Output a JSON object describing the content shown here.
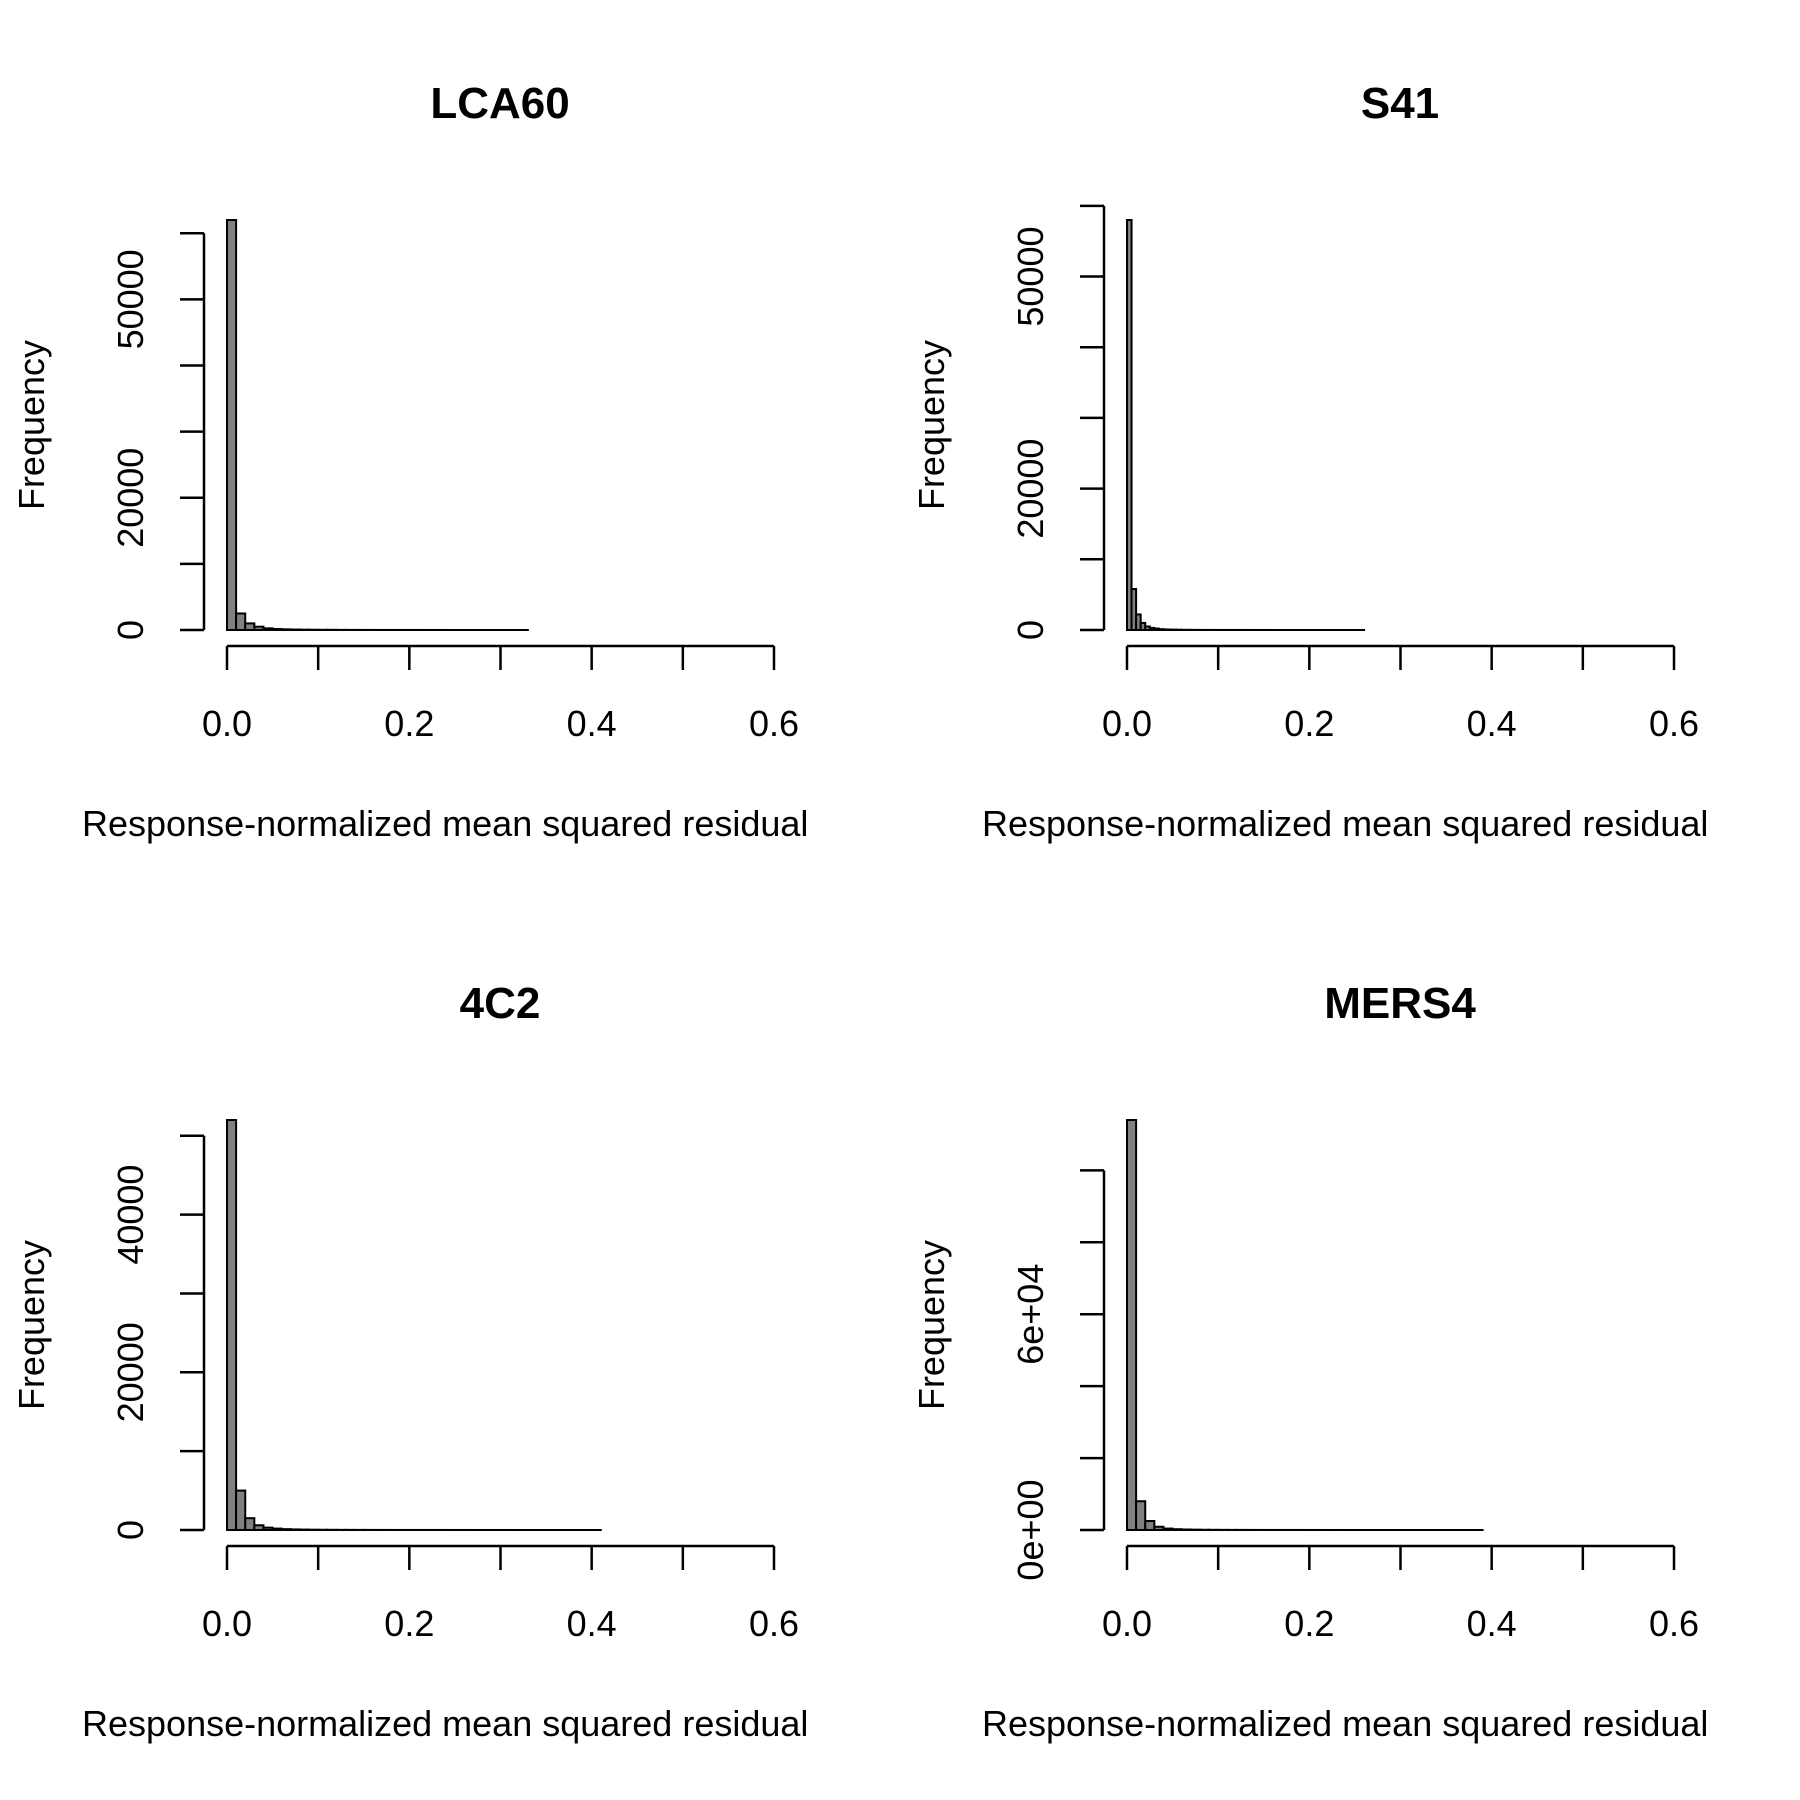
{
  "chart_data": [
    {
      "type": "bar",
      "title": "LCA60",
      "xlabel": "Response-normalized mean squared residual",
      "ylabel": "Frequency",
      "x_ticks": [
        "0.0",
        "0.2",
        "0.4",
        "0.6"
      ],
      "x_tick_values": [
        0.0,
        0.1,
        0.2,
        0.3,
        0.4,
        0.5,
        0.6
      ],
      "y_ticks": [
        "0",
        "20000",
        "50000"
      ],
      "y_tick_values": [
        0,
        10000,
        20000,
        30000,
        40000,
        50000,
        60000
      ],
      "xlim": [
        0.0,
        0.6
      ],
      "ylim": [
        0,
        62000
      ],
      "bin_width": 0.01,
      "x_start": 0.0,
      "values": [
        62000,
        2500,
        1000,
        500,
        250,
        150,
        100,
        70,
        50,
        40,
        30,
        25,
        20,
        15,
        12,
        10,
        8,
        7,
        6,
        5,
        4,
        4,
        3,
        3,
        2,
        2,
        2,
        1,
        1,
        1,
        1,
        1,
        1
      ],
      "bar_color": "#808080"
    },
    {
      "type": "bar",
      "title": "S41",
      "xlabel": "Response-normalized mean squared residual",
      "ylabel": "Frequency",
      "x_ticks": [
        "0.0",
        "0.2",
        "0.4",
        "0.6"
      ],
      "x_tick_values": [
        0.0,
        0.1,
        0.2,
        0.3,
        0.4,
        0.5,
        0.6
      ],
      "y_ticks": [
        "0",
        "20000",
        "50000"
      ],
      "y_tick_values": [
        0,
        10000,
        20000,
        30000,
        40000,
        50000,
        60000
      ],
      "xlim": [
        0.0,
        0.6
      ],
      "ylim": [
        0,
        58000
      ],
      "bin_width": 0.005,
      "x_start": 0.0,
      "values": [
        58000,
        5800,
        2200,
        1000,
        500,
        300,
        200,
        120,
        80,
        60,
        45,
        35,
        25,
        20,
        15,
        12,
        10,
        8,
        7,
        6,
        5,
        5,
        4,
        4,
        3,
        3,
        3,
        2,
        2,
        2,
        2,
        2,
        1,
        1,
        1,
        1,
        1,
        1,
        1,
        1,
        1,
        1,
        1,
        1,
        1,
        1,
        1,
        1,
        1,
        1,
        1,
        1
      ],
      "bar_color": "#808080"
    },
    {
      "type": "bar",
      "title": "4C2",
      "xlabel": "Response-normalized mean squared residual",
      "ylabel": "Frequency",
      "x_ticks": [
        "0.0",
        "0.2",
        "0.4",
        "0.6"
      ],
      "x_tick_values": [
        0.0,
        0.1,
        0.2,
        0.3,
        0.4,
        0.5,
        0.6
      ],
      "y_ticks": [
        "0",
        "20000",
        "40000"
      ],
      "y_tick_values": [
        0,
        10000,
        20000,
        30000,
        40000,
        50000
      ],
      "xlim": [
        0.0,
        0.6
      ],
      "ylim": [
        0,
        52000
      ],
      "bin_width": 0.01,
      "x_start": 0.0,
      "values": [
        52000,
        5000,
        1500,
        600,
        300,
        180,
        110,
        75,
        55,
        40,
        30,
        25,
        20,
        16,
        13,
        11,
        9,
        8,
        7,
        6,
        5,
        5,
        4,
        4,
        3,
        3,
        3,
        2,
        2,
        2,
        2,
        2,
        1,
        1,
        1,
        1,
        1,
        1,
        1,
        1,
        1
      ],
      "bar_color": "#808080"
    },
    {
      "type": "bar",
      "title": "MERS4",
      "xlabel": "Response-normalized mean squared residual",
      "ylabel": "Frequency",
      "x_ticks": [
        "0.0",
        "0.2",
        "0.4",
        "0.6"
      ],
      "x_tick_values": [
        0.0,
        0.1,
        0.2,
        0.3,
        0.4,
        0.5,
        0.6
      ],
      "y_ticks": [
        "0e+00",
        "6e+04"
      ],
      "y_tick_values": [
        0,
        20000,
        40000,
        60000,
        80000,
        100000
      ],
      "y_labeled_values": [
        0,
        60000
      ],
      "xlim": [
        0.0,
        0.6
      ],
      "ylim": [
        0,
        114000
      ],
      "bin_width": 0.01,
      "x_start": 0.0,
      "values": [
        114000,
        8000,
        2500,
        900,
        400,
        220,
        140,
        95,
        70,
        52,
        40,
        32,
        26,
        21,
        17,
        14,
        12,
        10,
        9,
        8,
        7,
        6,
        5,
        5,
        4,
        4,
        3,
        3,
        3,
        2,
        2,
        2,
        2,
        1,
        1,
        1,
        1,
        1,
        1
      ],
      "bar_color": "#808080"
    }
  ]
}
